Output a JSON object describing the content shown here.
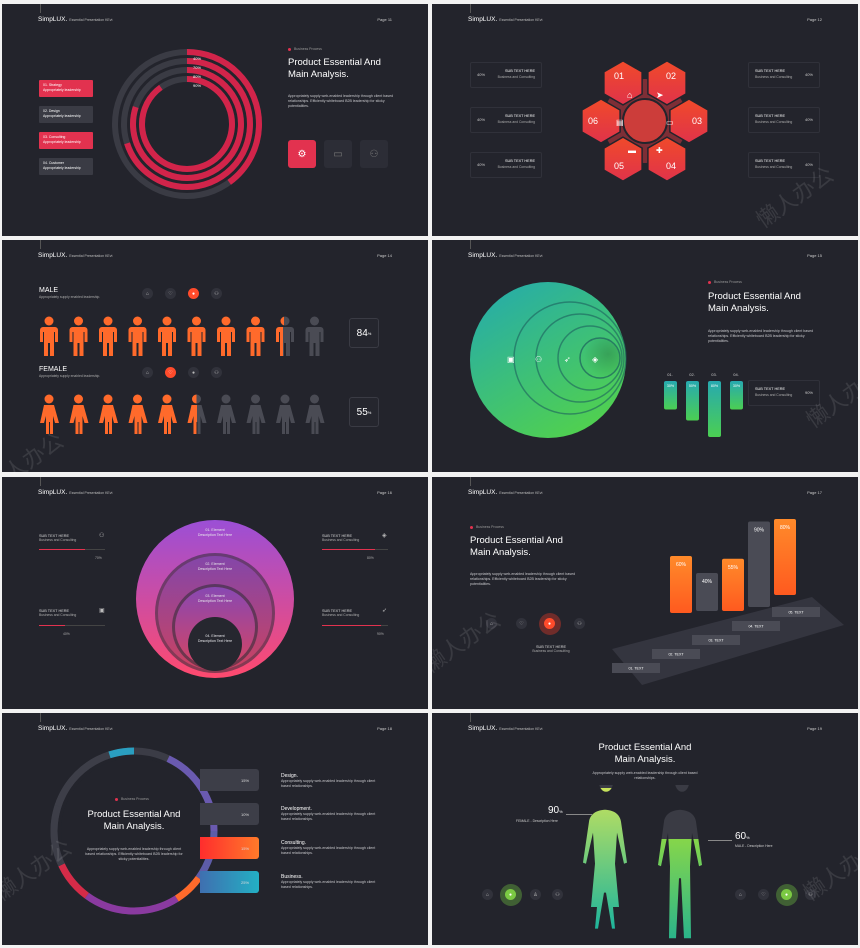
{
  "brand": "SimpLUX.",
  "brand_sub": "Essential Presentation KEvt",
  "colors": {
    "bg": "#23242c",
    "red": "#e2324f",
    "orange": "#ff6a2b",
    "green": "#6ccf4b",
    "teal": "#25b0a8"
  },
  "slides": {
    "s1": {
      "page": "Page 11",
      "tag": "Business Process",
      "title": "Product Essential And\nMain Analysis.",
      "body": "Appropriately supply web-enabled leadership through client based relationships. Efficiently whiteboard B2B leadership for sticky potentialities.",
      "legend": [
        {
          "l1": "01. Strategy",
          "l2": "Appropriately leadership"
        },
        {
          "l1": "02. Design",
          "l2": "Appropriately leadership"
        },
        {
          "l1": "03. Consulting",
          "l2": "Appropriately leadership"
        },
        {
          "l1": "04. Customer",
          "l2": "Appropriately leadership"
        }
      ],
      "ring_labels": [
        "40%",
        "70%",
        "80%",
        "90%"
      ],
      "ring_values": [
        40,
        70,
        80,
        90
      ],
      "icons": [
        "gear-icon",
        "chat-icon",
        "people-icon"
      ]
    },
    "s2": {
      "page": "Page 12",
      "hex_numbers": [
        "01",
        "02",
        "03",
        "04",
        "05",
        "06"
      ],
      "left_boxes": [
        {
          "pct": "40%",
          "l1": "SUB TEXT HERE",
          "l2": "Business and Consulting"
        },
        {
          "pct": "40%",
          "l1": "SUB TEXT HERE",
          "l2": "Business and Consulting"
        },
        {
          "pct": "40%",
          "l1": "SUB TEXT HERE",
          "l2": "Business and Consulting"
        }
      ],
      "right_boxes": [
        {
          "pct": "40%",
          "l1": "SUB TEXT HERE",
          "l2": "Business and Consulting"
        },
        {
          "pct": "40%",
          "l1": "SUB TEXT HERE",
          "l2": "Business and Consulting"
        },
        {
          "pct": "40%",
          "l1": "SUB TEXT HERE",
          "l2": "Business and Consulting"
        }
      ]
    },
    "s3": {
      "page": "Page 14",
      "male_title": "MALE",
      "male_sub": "Appropriately supply enabled leadership.",
      "male_pct": "84",
      "male_value": 84,
      "female_title": "FEMALE",
      "female_sub": "Appropriately supply enabled leadership.",
      "female_pct": "55",
      "female_value": 55,
      "pct_sign": "%"
    },
    "s4": {
      "page": "Page 15",
      "tag": "Business Process",
      "title": "Product Essential And\nMain Analysis.",
      "body": "Appropriately supply web-enabled leadership through client based relationships. Efficiently whiteboard B2B leadership for sticky potentialities.",
      "bar_numbers": [
        "01.",
        "02.",
        "03.",
        "04."
      ],
      "bar_labels": [
        "30%",
        "50%",
        "80%",
        "30%"
      ],
      "bar_values": [
        30,
        50,
        80,
        30
      ],
      "box": {
        "l1": "SUB TEXT HERE",
        "l2": "Business and Consulting",
        "pct": "90%"
      }
    },
    "s5": {
      "page": "Page 16",
      "rings": [
        {
          "l1": "01. Element",
          "l2": "Description Text Here"
        },
        {
          "l1": "02. Element",
          "l2": "Description Text Here"
        },
        {
          "l1": "03. Element",
          "l2": "Description Text Here"
        },
        {
          "l1": "04. Element",
          "l2": "Description Text Here"
        }
      ],
      "items": [
        {
          "l1": "SUB TEXT HERE",
          "l2": "Business and Consulting",
          "pct": "70%",
          "value": 70
        },
        {
          "l1": "SUB TEXT HERE",
          "l2": "Business and Consulting",
          "pct": "80%",
          "value": 80
        },
        {
          "l1": "SUB TEXT HERE",
          "l2": "Business and Consulting",
          "pct": "40%",
          "value": 40
        },
        {
          "l1": "SUB TEXT HERE",
          "l2": "Business and Consulting",
          "pct": "90%",
          "value": 90
        }
      ]
    },
    "s6": {
      "page": "Page 17",
      "tag": "Business Process",
      "title": "Product Essential And\nMain Analysis.",
      "body": "Appropriately supply web-enabled leadership through client based relationships. Efficiently whiteboard B2B leadership for sticky potentialities.",
      "sub1": "SUB TEXT HERE",
      "sub2": "Business and Consulting",
      "bars": [
        {
          "label": "60%",
          "value": 60
        },
        {
          "label": "40%",
          "value": 40
        },
        {
          "label": "55%",
          "value": 55
        },
        {
          "label": "90%",
          "value": 90
        },
        {
          "label": "80%",
          "value": 80
        }
      ],
      "steps": [
        "01. TEXT",
        "02. TEXT",
        "03. TEXT",
        "04. TEXT",
        "05. TEXT"
      ]
    },
    "s7": {
      "page": "Page 18",
      "tag": "Business Process",
      "title": "Product Essential And\nMain Analysis.",
      "body": "Appropriately supply web-enabled leadership through client based relationships. Efficiently whiteboard B2B leadership for sticky potentialities.",
      "rows": [
        {
          "pct": "15%",
          "title": "Design.",
          "desc": "Appropriately supply web-enabled leadership through client based relationships."
        },
        {
          "pct": "10%",
          "title": "Development.",
          "desc": "Appropriately supply web-enabled leadership through client based relationships."
        },
        {
          "pct": "15%",
          "title": "Consulting.",
          "desc": "Appropriately supply web-enabled leadership through client based relationships."
        },
        {
          "pct": "25%",
          "title": "Business.",
          "desc": "Appropriately supply web-enabled leadership through client based relationships."
        }
      ]
    },
    "s8": {
      "page": "Page 19",
      "title": "Product Essential And\nMain Analysis.",
      "body": "Appropriately supply web-enabled leadership through client based relationships.",
      "female_pct": "90",
      "female_label": "FEMALE - Description Here",
      "female_value": 90,
      "male_pct": "60",
      "male_label": "MALE - Description Here",
      "male_value": 60,
      "pct_sign": "%"
    }
  },
  "watermark": "懒人办公"
}
